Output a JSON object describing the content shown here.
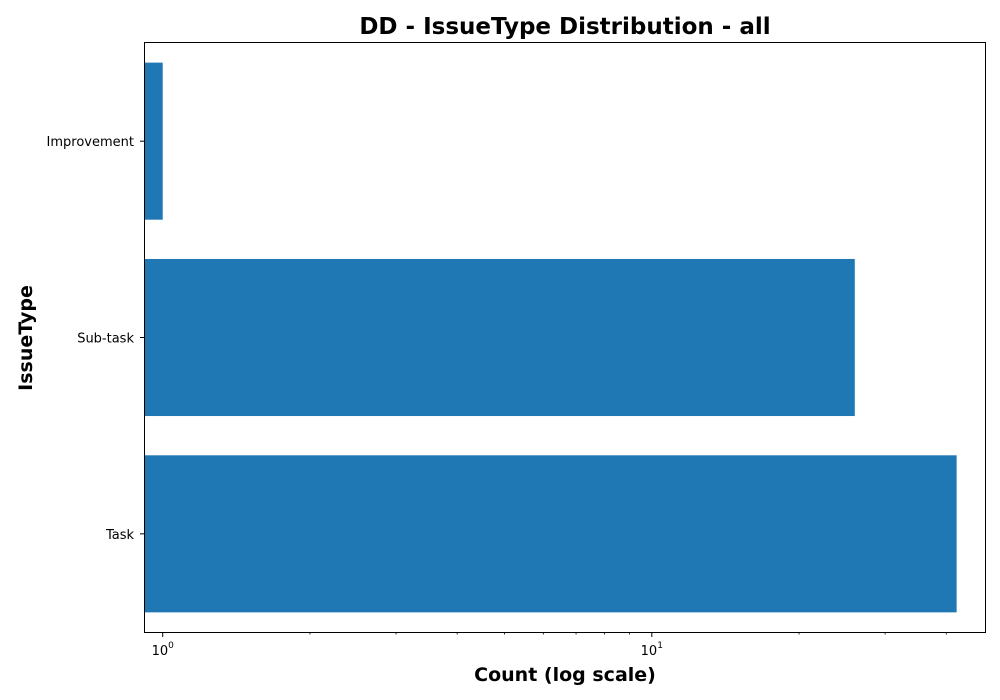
{
  "chart_data": {
    "type": "bar",
    "orientation": "horizontal",
    "title": "DD - IssueType Distribution - all",
    "xlabel": "Count (log scale)",
    "ylabel": "IssueType",
    "x_scale": "log",
    "xlim": [
      0.92,
      48
    ],
    "x_ticks": [
      {
        "value": 1,
        "base": "10",
        "exp": "0"
      },
      {
        "value": 10,
        "base": "10",
        "exp": "1"
      }
    ],
    "categories": [
      "Improvement",
      "Sub-task",
      "Task"
    ],
    "values": [
      1,
      26,
      42
    ],
    "bar_color": "#1f77b4",
    "grid": false,
    "legend": "none"
  }
}
